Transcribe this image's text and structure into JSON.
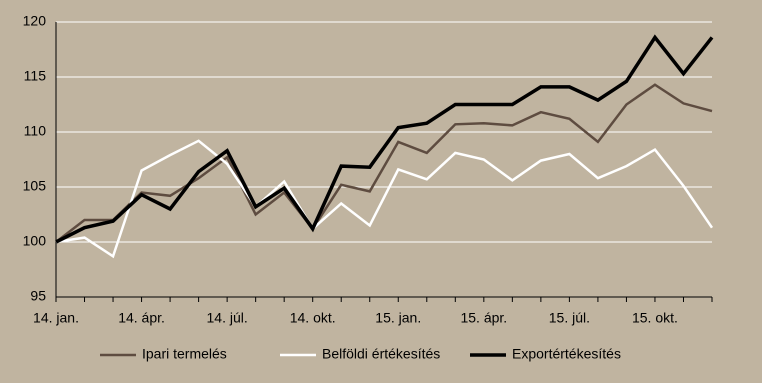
{
  "chart_data": {
    "type": "line",
    "categories": [
      "14. jan.",
      null,
      null,
      "14. ápr.",
      null,
      null,
      "14. júl.",
      null,
      null,
      "14. okt.",
      null,
      null,
      "15. jan.",
      null,
      null,
      "15. ápr.",
      null,
      null,
      "15. júl.",
      null,
      null,
      "15. okt.",
      null,
      null
    ],
    "series": [
      {
        "name": "Ipari termelés",
        "color": "#5e4c40",
        "values": [
          100,
          102.0,
          102.0,
          104.5,
          104.2,
          105.8,
          107.7,
          102.5,
          104.5,
          101.2,
          105.2,
          104.6,
          109.1,
          108.1,
          110.7,
          110.8,
          110.6,
          111.8,
          111.2,
          109.1,
          112.5,
          114.3,
          112.6,
          111.9
        ]
      },
      {
        "name": "Belföldi értékesítés",
        "color": "#ffffff",
        "values": [
          100,
          100.4,
          98.7,
          106.5,
          107.9,
          109.2,
          107.1,
          103.2,
          105.5,
          101.2,
          103.5,
          101.5,
          106.6,
          105.7,
          108.1,
          107.5,
          105.6,
          107.4,
          108.0,
          105.8,
          106.9,
          108.4,
          105.1,
          101.3
        ]
      },
      {
        "name": "Exportértékesítés",
        "color": "#000000",
        "values": [
          100,
          101.3,
          101.9,
          104.3,
          103.0,
          106.4,
          108.3,
          103.2,
          104.9,
          101.2,
          106.9,
          106.8,
          110.4,
          110.8,
          112.5,
          112.5,
          112.5,
          114.1,
          114.1,
          112.9,
          114.6,
          118.6,
          115.3,
          118.6
        ]
      }
    ],
    "ylim": [
      95,
      120
    ],
    "yticks": [
      95,
      100,
      105,
      110,
      115,
      120
    ],
    "grid": true,
    "legend": "bottom"
  }
}
